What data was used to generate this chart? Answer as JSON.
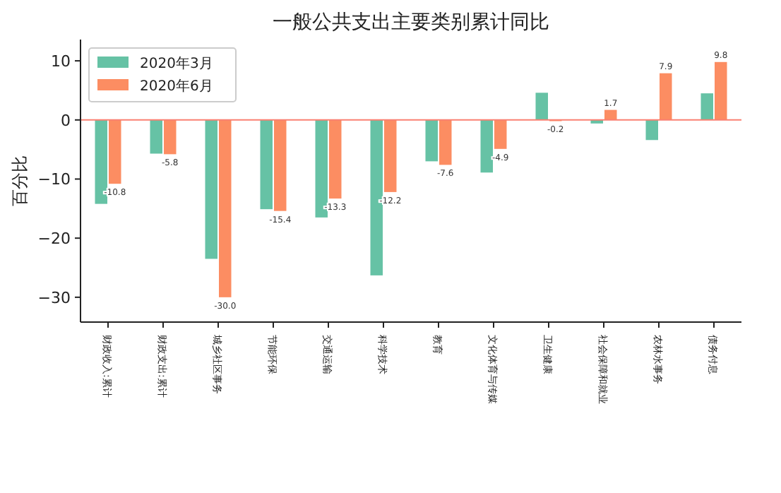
{
  "chart_data": {
    "type": "bar",
    "title": "一般公共支出主要类别累计同比",
    "ylabel": "百分比",
    "categories": [
      "财政收入:累计",
      "财政支出:累计",
      "城乡社区事务",
      "节能环保",
      "交通运输",
      "科学技术",
      "教育",
      "文化体育与传媒",
      "卫生健康",
      "社会保障和就业",
      "农林水事务",
      "债务付息"
    ],
    "series": [
      {
        "name": "2020年3月",
        "color": "#66c2a5",
        "values": [
          -14.2,
          -5.7,
          -23.5,
          -15.1,
          -16.5,
          -26.3,
          -7.0,
          -8.9,
          4.6,
          -0.6,
          -3.4,
          4.5
        ]
      },
      {
        "name": "2020年6月",
        "color": "#fc8d62",
        "values": [
          -10.8,
          -5.8,
          -30.0,
          -15.4,
          -13.3,
          -12.2,
          -7.6,
          -4.9,
          -0.2,
          1.7,
          7.9,
          9.8
        ],
        "value_labels": [
          "-10.8",
          "-5.8",
          "-30.0",
          "-15.4",
          "-13.3",
          "-12.2",
          "-7.6",
          "-4.9",
          "-0.2",
          "1.7",
          "7.9",
          "9.8"
        ]
      }
    ],
    "ylim": [
      -34.2,
      13.6
    ],
    "yticks": [
      -30,
      -20,
      -10,
      0,
      10
    ],
    "grid": false,
    "legend": "top left",
    "ref_lines": [
      {
        "axis": "y",
        "value": 0,
        "color": "#fa8072"
      }
    ]
  }
}
